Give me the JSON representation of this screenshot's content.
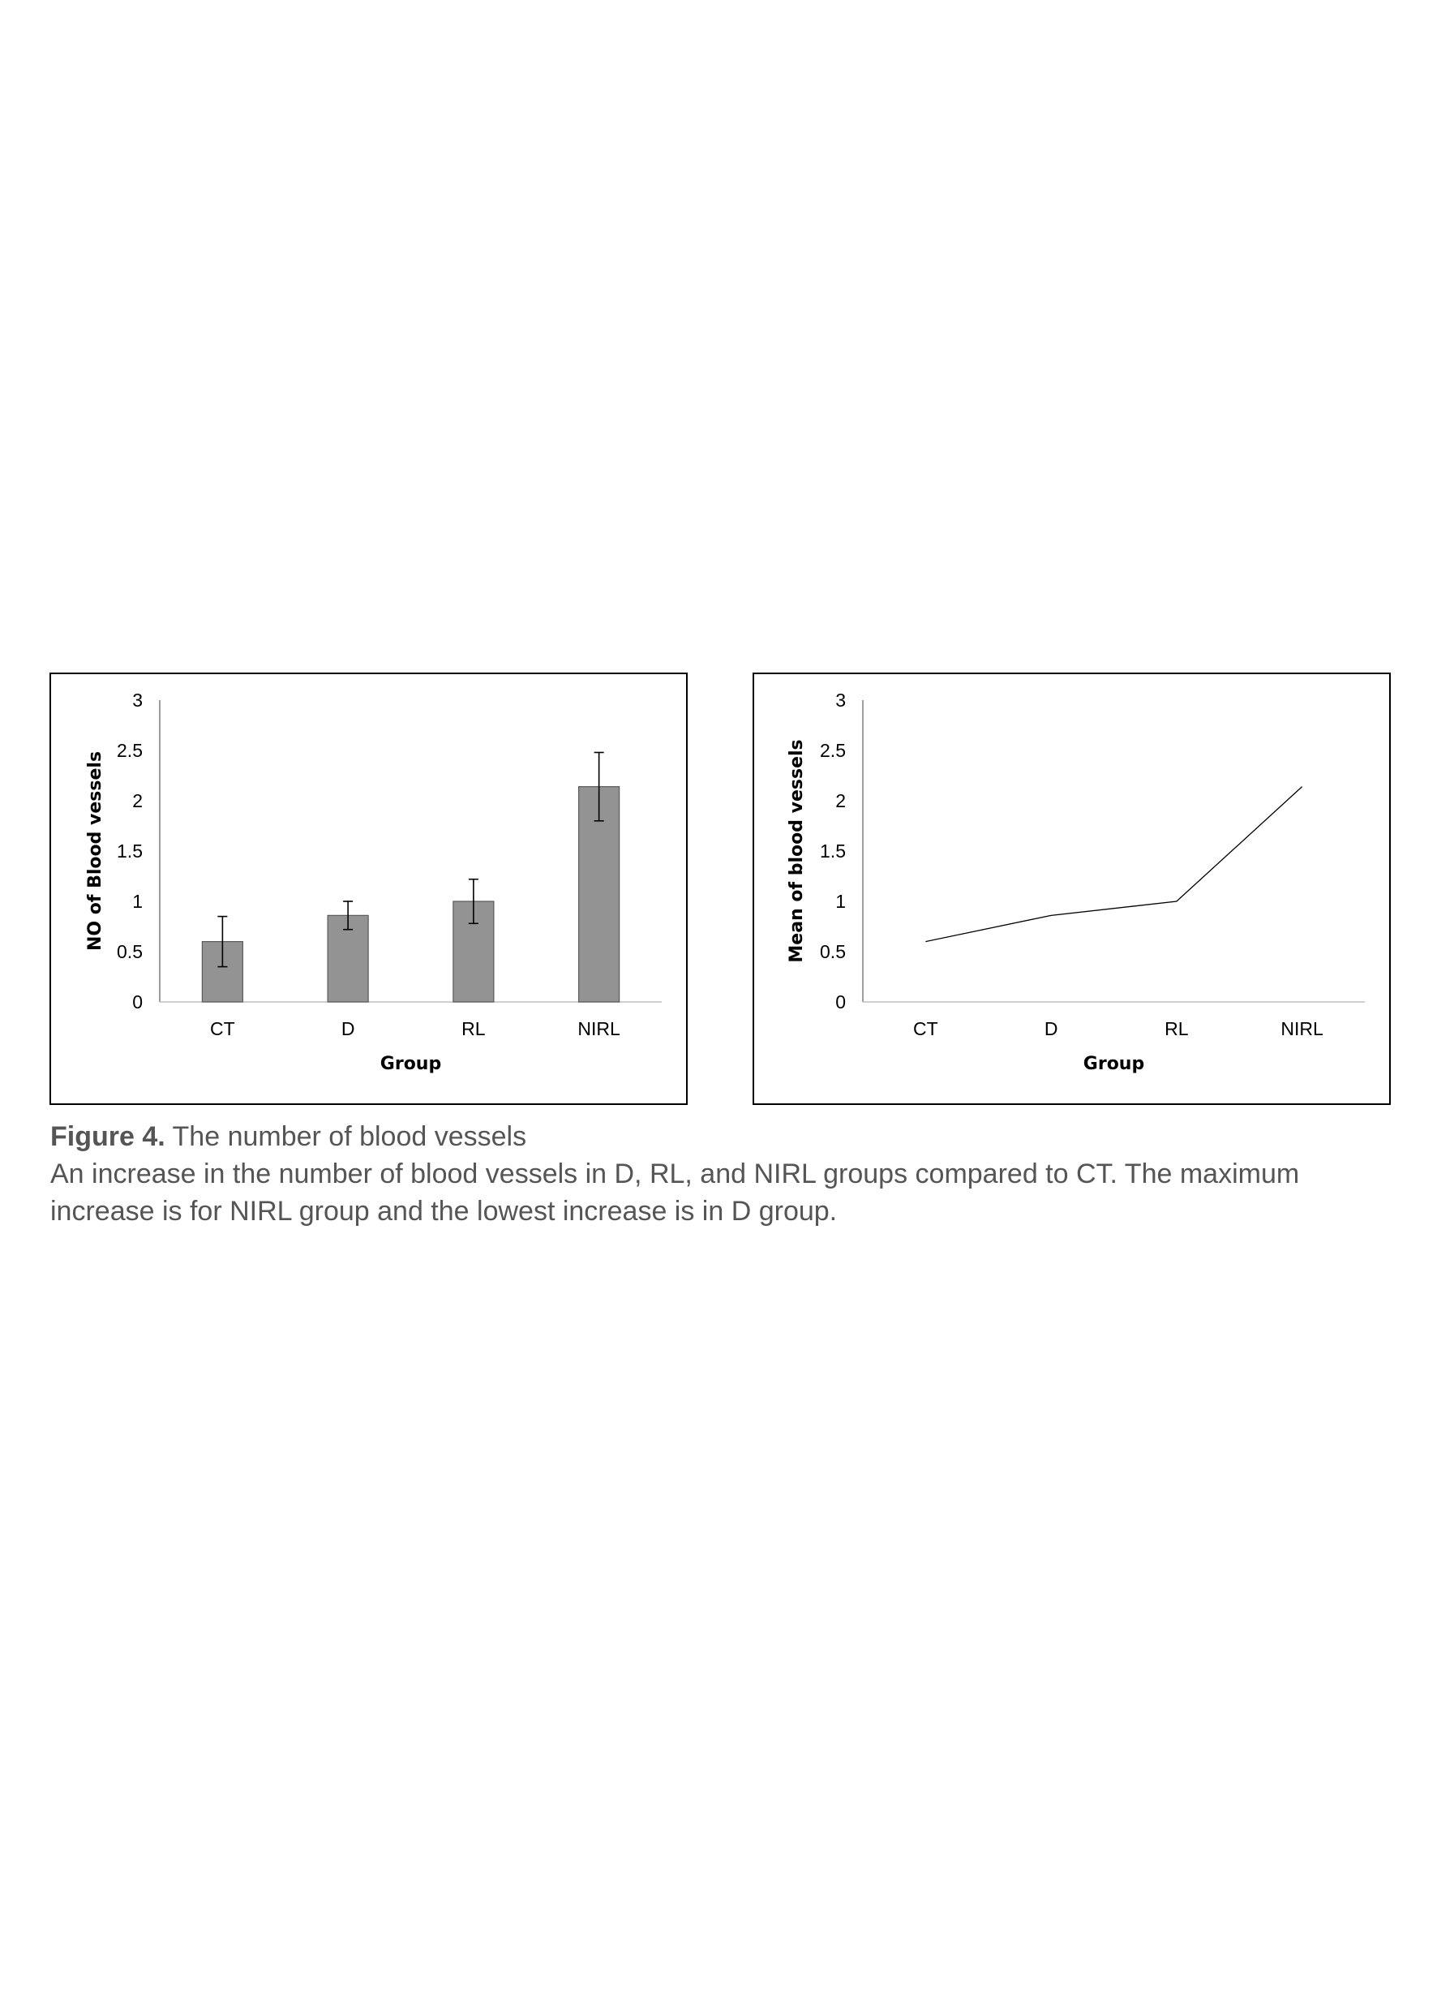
{
  "chart_data": [
    {
      "type": "bar",
      "categories": [
        "CT",
        "D",
        "RL",
        "NIRL"
      ],
      "values": [
        0.6,
        0.86,
        1.0,
        2.14
      ],
      "errors": [
        0.25,
        0.14,
        0.22,
        0.34
      ],
      "xlabel": "Group",
      "ylabel": "NO of Blood vessels",
      "ylim": [
        0,
        3
      ],
      "yticks": [
        "0",
        "0.5",
        "1",
        "1.5",
        "2",
        "2.5",
        "3"
      ],
      "bar_color": "#939393",
      "grid": false,
      "legend": "none"
    },
    {
      "type": "line",
      "categories": [
        "CT",
        "D",
        "RL",
        "NIRL"
      ],
      "values": [
        0.6,
        0.86,
        1.0,
        2.14
      ],
      "xlabel": "Group",
      "ylabel": "Mean of blood vessels",
      "ylim": [
        0,
        3
      ],
      "yticks": [
        "0",
        "0.5",
        "1",
        "1.5",
        "2",
        "2.5",
        "3"
      ],
      "line_color": "#000000",
      "grid": false,
      "legend": "none"
    }
  ],
  "caption": {
    "label": "Figure 4.",
    "title": " The number of blood vessels",
    "text": "An increase in the number of blood vessels in D, RL, and NIRL groups compared to CT. The maximum increase is for NIRL group and the lowest increase is in D group."
  }
}
